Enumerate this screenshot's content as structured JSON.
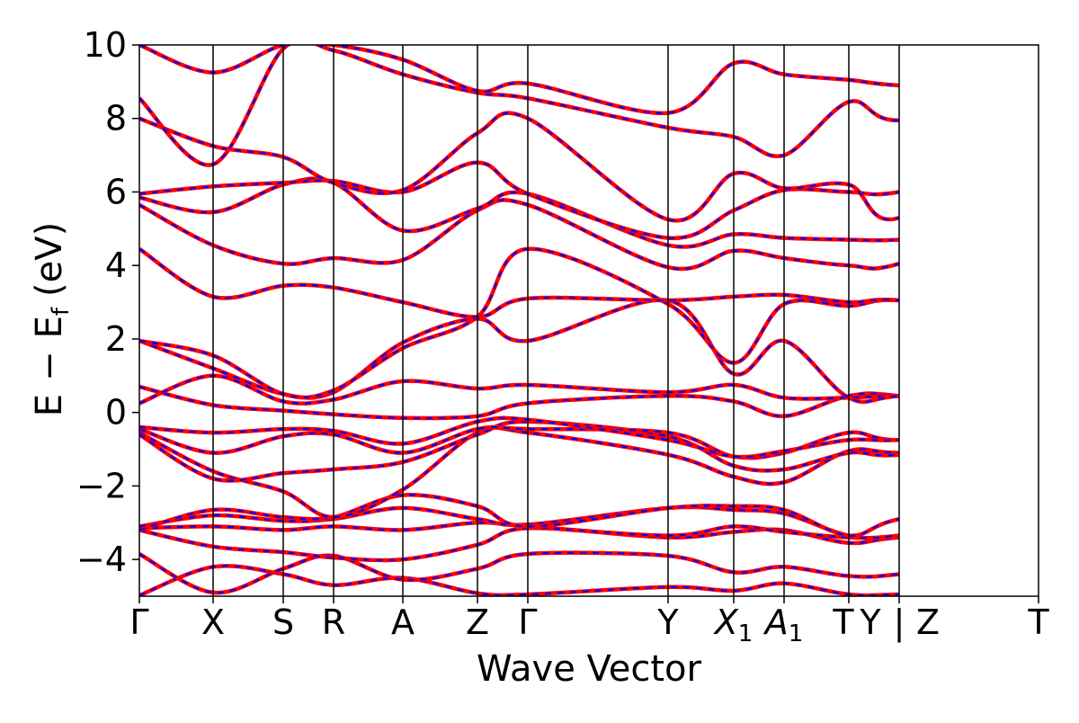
{
  "chart_data": {
    "type": "line",
    "title": "",
    "xlabel": "Wave Vector",
    "ylabel": "E − E_f (eV)",
    "ylabel_parts": {
      "E": "E",
      "minus": "−",
      "Ef": "E",
      "sub": "f",
      "unit": "(eV)"
    },
    "ylim": [
      -5,
      10
    ],
    "yticks": [
      -4,
      -2,
      0,
      2,
      4,
      6,
      8,
      10
    ],
    "ytick_labels": [
      "−4",
      "−2",
      "0",
      "2",
      "4",
      "6",
      "8",
      "10"
    ],
    "grid": false,
    "legend": "none",
    "colors": {
      "solid": "#ff0000",
      "dashed": "#0000ff",
      "frame": "#000000"
    },
    "kpath": [
      {
        "label": "Γ",
        "k": 0.0
      },
      {
        "label": "X",
        "k": 0.082
      },
      {
        "label": "S",
        "k": 0.16
      },
      {
        "label": "R",
        "k": 0.216
      },
      {
        "label": "A",
        "k": 0.293
      },
      {
        "label": "Z",
        "k": 0.376
      },
      {
        "label": "Γ",
        "k": 0.432
      },
      {
        "label": "Y",
        "k": 0.588
      },
      {
        "label": "X",
        "sub": "1",
        "k": 0.661
      },
      {
        "label": "A",
        "sub": "1",
        "k": 0.717
      },
      {
        "label": "T",
        "k": 0.789
      },
      {
        "label": "Y",
        "k": 0.845
      },
      {
        "label": "|",
        "k": 0.845
      },
      {
        "label": "Z",
        "k": 0.845
      },
      {
        "label": "T",
        "k": 1.0
      }
    ],
    "x_tick_display": [
      "Γ",
      "X",
      "S",
      "R",
      "A",
      "Z",
      "Γ",
      "Y",
      "X1",
      "A1",
      "T",
      "Y",
      "|",
      "Z",
      "T"
    ],
    "break_at": 0.845,
    "series": [
      {
        "values": [
          -4.98,
          -4.2,
          -4.4,
          -4.7,
          -4.5,
          -4.92,
          -4.95,
          -4.75,
          -4.85,
          -4.65,
          -4.95,
          -4.95,
          -4.8,
          -4.95
        ]
      },
      {
        "values": [
          -3.85,
          -4.9,
          -4.25,
          -3.9,
          -4.55,
          -4.25,
          -3.85,
          -3.9,
          -4.35,
          -4.2,
          -4.45,
          -4.4,
          -3.9,
          -4.9
        ]
      },
      {
        "values": [
          -3.2,
          -3.65,
          -3.8,
          -3.95,
          -4.0,
          -3.6,
          -3.15,
          -3.4,
          -3.25,
          -3.2,
          -3.55,
          -3.4,
          -3.2,
          -3.45
        ]
      },
      {
        "values": [
          -3.15,
          -3.1,
          -3.2,
          -3.1,
          -3.2,
          -3.0,
          -3.1,
          -3.35,
          -3.1,
          -3.25,
          -3.4,
          -3.35,
          -2.85,
          -3.35
        ]
      },
      {
        "values": [
          -3.1,
          -2.8,
          -2.95,
          -2.9,
          -2.6,
          -2.9,
          -3.05,
          -2.6,
          -2.65,
          -2.75,
          -3.35,
          -3.35,
          -2.85,
          -3.3
        ]
      },
      {
        "values": [
          -3.2,
          -2.65,
          -2.85,
          -2.85,
          -2.25,
          -2.55,
          -3.1,
          -2.6,
          -2.55,
          -2.65,
          -3.35,
          -2.9,
          -2.25,
          -2.9
        ]
      },
      {
        "values": [
          -0.55,
          -1.6,
          -2.15,
          -2.85,
          -2.1,
          -0.55,
          -0.55,
          -1.15,
          -1.75,
          -1.9,
          -1.05,
          -1.1,
          -1.1,
          -2.0
        ]
      },
      {
        "values": [
          -0.6,
          -1.8,
          -1.65,
          -1.55,
          -1.35,
          -0.6,
          -0.25,
          -0.65,
          -1.45,
          -1.55,
          -1.1,
          -1.15,
          -0.65,
          -1.15
        ]
      },
      {
        "values": [
          -0.45,
          -1.1,
          -0.65,
          -0.6,
          -1.1,
          -0.45,
          -0.45,
          -0.55,
          -1.2,
          -1.1,
          -0.55,
          -0.75,
          -0.55,
          -0.55
        ]
      },
      {
        "values": [
          -0.4,
          -0.55,
          -0.45,
          -0.5,
          -0.85,
          -0.25,
          -0.2,
          -0.75,
          -1.2,
          -1.05,
          -0.75,
          -0.75,
          -0.55,
          -0.65
        ]
      },
      {
        "values": [
          0.7,
          0.2,
          0.05,
          -0.05,
          -0.15,
          -0.1,
          0.25,
          0.45,
          0.3,
          -0.1,
          0.45,
          0.45,
          -0.1,
          -0.3
        ]
      },
      {
        "values": [
          0.25,
          1.0,
          0.3,
          0.35,
          0.85,
          0.65,
          0.75,
          0.55,
          0.75,
          0.4,
          0.4,
          0.45,
          0.4,
          0.5
        ]
      },
      {
        "values": [
          1.95,
          1.2,
          0.5,
          0.55,
          1.9,
          2.55,
          1.95,
          3.05,
          1.05,
          1.95,
          0.4,
          0.45,
          0.8,
          0.55
        ]
      },
      {
        "values": [
          1.95,
          1.55,
          0.5,
          0.6,
          1.75,
          2.6,
          4.45,
          2.95,
          1.35,
          2.95,
          2.9,
          3.05,
          2.6,
          2.95
        ]
      },
      {
        "values": [
          4.45,
          3.15,
          3.45,
          3.4,
          3.0,
          2.6,
          3.1,
          3.05,
          3.15,
          3.2,
          3.0,
          3.05,
          2.6,
          3.05
        ]
      },
      {
        "values": [
          5.65,
          4.55,
          4.05,
          4.2,
          4.15,
          5.5,
          5.65,
          3.95,
          4.4,
          4.2,
          4.0,
          4.05,
          5.5,
          4.0
        ]
      },
      {
        "values": [
          5.85,
          5.45,
          6.2,
          6.25,
          4.95,
          5.55,
          5.95,
          4.55,
          4.85,
          4.75,
          4.7,
          4.7,
          4.9,
          4.45
        ]
      },
      {
        "values": [
          5.95,
          6.15,
          6.25,
          6.3,
          6.0,
          6.8,
          5.95,
          4.75,
          5.5,
          6.05,
          6.0,
          6.0,
          6.85,
          5.25
        ]
      },
      {
        "values": [
          8.0,
          7.25,
          6.95,
          6.25,
          6.05,
          7.6,
          8.0,
          5.25,
          6.5,
          6.1,
          6.2,
          5.3,
          7.9,
          6.8
        ]
      },
      {
        "values": [
          8.55,
          6.75,
          9.9,
          9.85,
          9.2,
          8.7,
          8.55,
          7.75,
          7.5,
          7.0,
          8.45,
          7.95,
          8.65,
          8.0
        ]
      },
      {
        "values": [
          10.0,
          9.25,
          10.0,
          10.0,
          9.6,
          8.75,
          8.95,
          8.15,
          9.5,
          9.2,
          9.05,
          8.9,
          8.75,
          9.2
        ]
      }
    ]
  }
}
